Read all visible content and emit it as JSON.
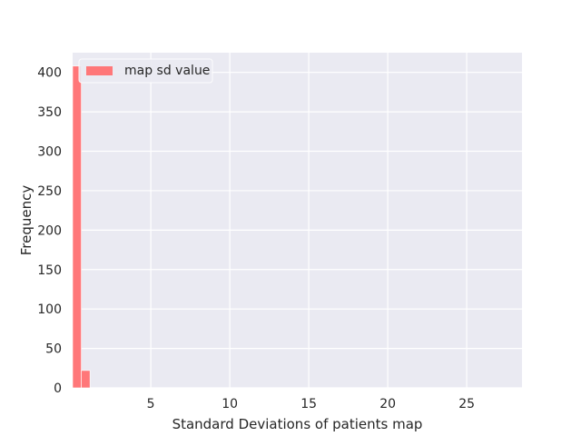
{
  "chart_data": {
    "type": "bar",
    "subtype": "histogram",
    "title": "",
    "xlabel": "Standard Deviations of patients map",
    "ylabel": "Frequency",
    "xlim": [
      0.05,
      28.5
    ],
    "ylim": [
      0,
      425
    ],
    "xticks": [
      5,
      10,
      15,
      20,
      25
    ],
    "yticks": [
      0,
      50,
      100,
      150,
      200,
      250,
      300,
      350,
      400
    ],
    "grid": true,
    "background": "#eaeaf2",
    "grid_color": "#ffffff",
    "legend": {
      "position": "top-left",
      "entries": [
        "map sd value"
      ]
    },
    "series": [
      {
        "name": "map sd value",
        "color": "#ff7779",
        "bins": [
          {
            "x0": 0.05,
            "x1": 0.6,
            "count": 408
          },
          {
            "x0": 0.6,
            "x1": 1.15,
            "count": 22
          }
        ]
      }
    ]
  }
}
